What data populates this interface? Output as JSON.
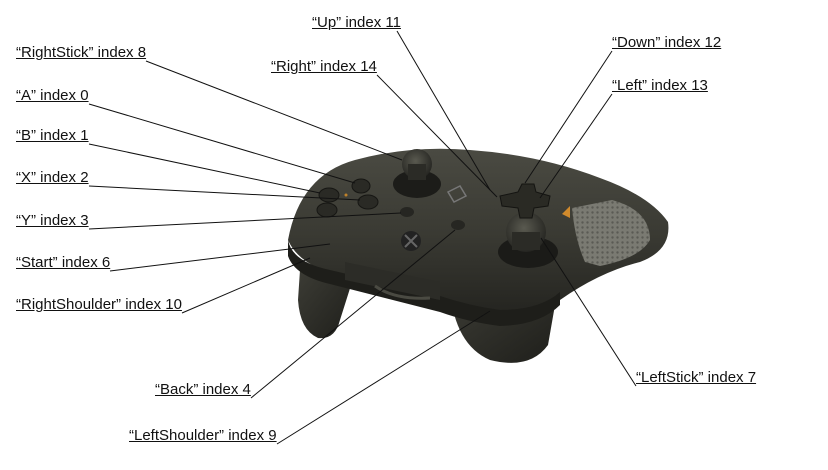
{
  "annotations": [
    {
      "id": "up",
      "text": "“Up” index 11"
    },
    {
      "id": "rightstick",
      "text": "“RightStick” index 8"
    },
    {
      "id": "down",
      "text": "“Down” index 12"
    },
    {
      "id": "right",
      "text": "“Right” index 14"
    },
    {
      "id": "a",
      "text": "“A” index 0"
    },
    {
      "id": "left",
      "text": "“Left” index 13"
    },
    {
      "id": "b",
      "text": "“B” index 1"
    },
    {
      "id": "x",
      "text": "“X” index 2"
    },
    {
      "id": "y",
      "text": "“Y” index 3"
    },
    {
      "id": "start",
      "text": "“Start” index 6"
    },
    {
      "id": "rightshoulder",
      "text": "“RightShoulder” index 10"
    },
    {
      "id": "leftstick",
      "text": "“LeftStick” index 7"
    },
    {
      "id": "back",
      "text": "“Back” index 4"
    },
    {
      "id": "leftshoulder",
      "text": "“LeftShoulder” index 9"
    }
  ],
  "colors": {
    "controller_body": "#3a3a34",
    "controller_shadow": "#24241f",
    "accent": "#c0822a"
  }
}
